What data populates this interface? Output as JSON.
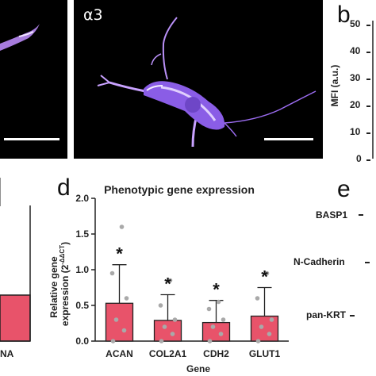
{
  "panel_top_left": {
    "scalebar": true
  },
  "panel_top_mid": {
    "label": "α3"
  },
  "panel_b": {
    "letter": "b",
    "ylabel": "MFI (a.u.)",
    "yticks": [
      "50",
      "40",
      "30",
      "20",
      "10",
      "0"
    ]
  },
  "panel_c_fragment": {
    "xlabel_fragment": "NA"
  },
  "panel_e": {
    "letter": "e",
    "rows": [
      "BASP1",
      "N-Cadherin",
      "pan-KRT"
    ]
  },
  "chart_data": {
    "type": "bar",
    "panel_letter": "d",
    "title": "Phenotypic gene expression",
    "xlabel": "Gene",
    "ylabel_line1": "Relative gene",
    "ylabel_line2": "expression (2",
    "ylabel_exp": "-ΔΔCT",
    "ylabel_close": ")",
    "ylim": [
      0,
      2.0
    ],
    "yticks": [
      "0.0",
      "0.5",
      "1.0",
      "1.5",
      "2.0"
    ],
    "categories": [
      "ACAN",
      "COL2A1",
      "CDH2",
      "GLUT1"
    ],
    "values": [
      0.53,
      0.29,
      0.26,
      0.35
    ],
    "errors": [
      0.54,
      0.36,
      0.31,
      0.4
    ],
    "significance": [
      "*",
      "*",
      "*",
      "*"
    ],
    "points": [
      [
        0.0,
        0.15,
        0.3,
        0.6,
        0.95,
        1.6
      ],
      [
        0.0,
        0.1,
        0.2,
        0.3,
        0.5,
        0.85
      ],
      [
        0.0,
        0.1,
        0.2,
        0.3,
        0.45,
        0.55
      ],
      [
        0.0,
        0.1,
        0.2,
        0.3,
        0.6,
        0.95
      ]
    ],
    "bar_color": "#e8536a",
    "point_color": "#a9a9a9"
  },
  "colors": {
    "accent": "#e8536a",
    "cell": "#9b6cf0"
  }
}
